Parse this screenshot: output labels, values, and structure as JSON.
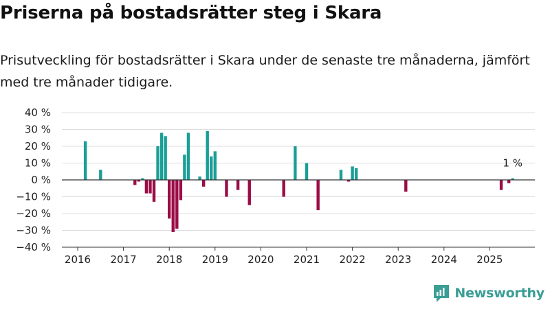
{
  "header": {
    "title": "Priserna på bostadsrätter steg i Skara",
    "subtitle": "Prisutveckling för bostadsrätter i Skara under de senaste tre månaderna, jämfört med tre månader tidigare."
  },
  "brand": {
    "name": "Newsworthy",
    "icon": "newsworthy-logo-icon"
  },
  "colors": {
    "positive": "#1a9e96",
    "negative": "#9b0d47",
    "grid": "#dddddd",
    "brand": "#3a9e95"
  },
  "chart_data": {
    "type": "bar",
    "title": "",
    "xlabel": "",
    "ylabel": "",
    "ylim": [
      -40,
      40
    ],
    "y_ticks": [
      40,
      30,
      20,
      10,
      0,
      -10,
      -20,
      -30,
      -40
    ],
    "y_tick_labels": [
      "40 %",
      "30 %",
      "20 %",
      "10 %",
      "0 %",
      "−10 %",
      "−20 %",
      "−30 %",
      "−40 %"
    ],
    "x_ticks": [
      "2016",
      "2017",
      "2018",
      "2019",
      "2020",
      "2021",
      "2022",
      "2023",
      "2024",
      "2025"
    ],
    "grid": true,
    "legend": "none",
    "annotation": {
      "text": "1 %",
      "date": "2025-07"
    },
    "series": [
      {
        "x": [
          "2016-03",
          "2016-07",
          "2017-04",
          "2017-05",
          "2017-06",
          "2017-07",
          "2017-08",
          "2017-09",
          "2017-10",
          "2017-11",
          "2017-12",
          "2018-01",
          "2018-02",
          "2018-03",
          "2018-04",
          "2018-05",
          "2018-06",
          "2018-09",
          "2018-10",
          "2018-11",
          "2018-12",
          "2019-01",
          "2019-04",
          "2019-07",
          "2019-10",
          "2020-07",
          "2020-10",
          "2021-01",
          "2021-04",
          "2021-10",
          "2021-12",
          "2022-01",
          "2022-02",
          "2023-03",
          "2025-04",
          "2025-06",
          "2025-07"
        ],
        "values": [
          23,
          6,
          -3,
          -1,
          1,
          -8,
          -8,
          -13,
          20,
          28,
          26,
          -23,
          -31,
          -29,
          -12,
          15,
          28,
          2,
          -4,
          29,
          14,
          17,
          -10,
          -6,
          -15,
          -10,
          20,
          10,
          -18,
          6,
          -1,
          8,
          7,
          -7,
          -6,
          -2,
          1
        ]
      }
    ]
  }
}
